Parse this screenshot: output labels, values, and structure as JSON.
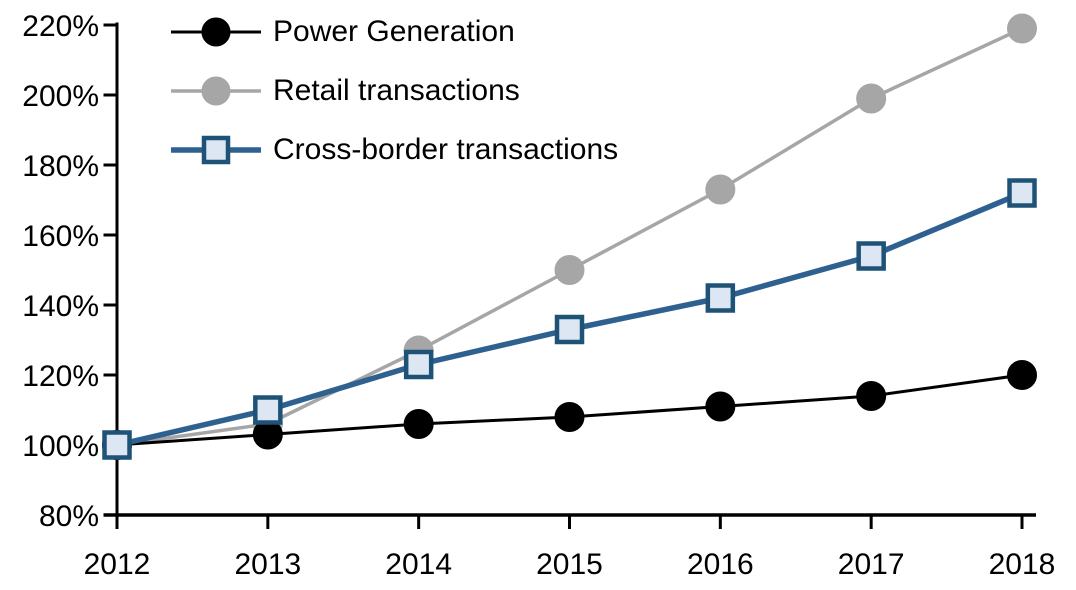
{
  "chart_data": {
    "type": "line",
    "title": "",
    "xlabel": "",
    "ylabel": "",
    "x": [
      2012,
      2013,
      2014,
      2015,
      2016,
      2017,
      2018
    ],
    "x_tick_labels": [
      "2012",
      "2013",
      "2014",
      "2015",
      "2016",
      "2017",
      "2018"
    ],
    "ylim": [
      80,
      220
    ],
    "ytick_step": 20,
    "y_tick_labels": [
      "80%",
      "100%",
      "120%",
      "140%",
      "160%",
      "180%",
      "200%",
      "220%"
    ],
    "grid": false,
    "legend_position": "top-left",
    "axis_color": "#000000",
    "series": [
      {
        "name": "Power Generation",
        "marker": "circle",
        "color": "#000000",
        "marker_fill": "#000000",
        "marker_border": "#000000",
        "line_width": 3,
        "values": [
          100,
          103,
          106,
          108,
          111,
          114,
          120
        ]
      },
      {
        "name": "Retail transactions",
        "marker": "circle",
        "color": "#A6A6A6",
        "marker_fill": "#A6A6A6",
        "marker_border": "#A6A6A6",
        "line_width": 3.5,
        "values": [
          100,
          106,
          127,
          150,
          173,
          199,
          219
        ]
      },
      {
        "name": "Cross-border transactions",
        "marker": "square",
        "color": "#2E6190",
        "marker_fill": "#DCE7F3",
        "marker_border": "#1F5277",
        "line_width": 5.5,
        "values": [
          100,
          110,
          123,
          133,
          142,
          154,
          172
        ]
      }
    ],
    "z_order": [
      1,
      0,
      2
    ]
  }
}
